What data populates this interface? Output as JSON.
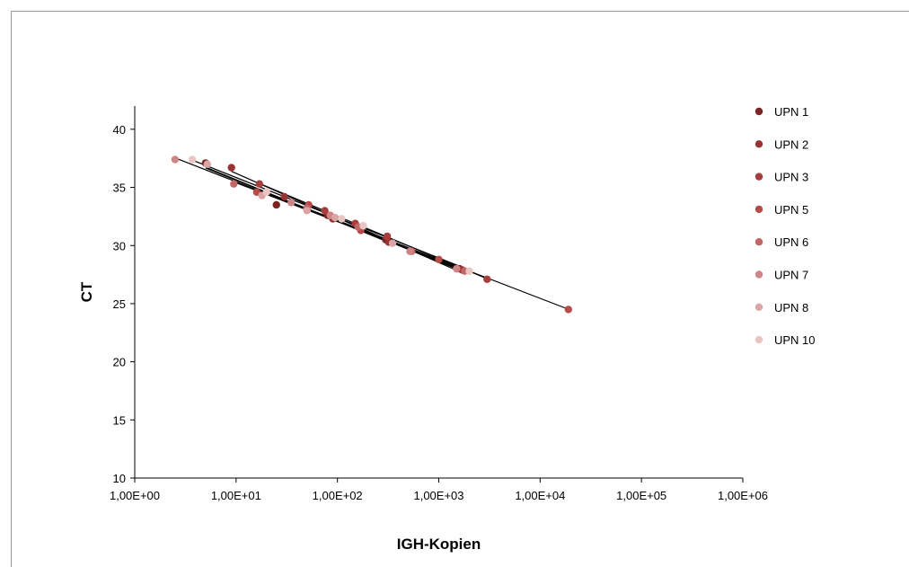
{
  "chart_data": {
    "type": "scatter",
    "title": "",
    "xlabel": "IGH-Kopien",
    "ylabel": "CT",
    "x_scale": "log",
    "xlim": [
      1,
      1000000
    ],
    "ylim": [
      10,
      42
    ],
    "x_ticks": [
      1,
      10,
      100,
      1000,
      10000,
      100000,
      1000000
    ],
    "x_tick_labels": [
      "1,00E+00",
      "1,00E+01",
      "1,00E+02",
      "1,00E+03",
      "1,00E+04",
      "1,00E+05",
      "1,00E+06"
    ],
    "y_ticks": [
      10,
      15,
      20,
      25,
      30,
      35,
      40
    ],
    "y_tick_labels": [
      "10",
      "15",
      "20",
      "25",
      "30",
      "35",
      "40"
    ],
    "grid": false,
    "legend_position": "right",
    "trendlines": true,
    "series": [
      {
        "name": "UPN 1",
        "color": "#7b2424",
        "points": [
          [
            5,
            37.1
          ],
          [
            25,
            33.5
          ],
          [
            80,
            32.6
          ],
          [
            300,
            30.5
          ],
          [
            1600,
            28.0
          ]
        ]
      },
      {
        "name": "UPN 2",
        "color": "#993333",
        "points": [
          [
            9,
            36.7
          ],
          [
            30,
            34.2
          ],
          [
            90,
            32.3
          ],
          [
            320,
            30.3
          ],
          [
            1700,
            27.9
          ]
        ]
      },
      {
        "name": "UPN 3",
        "color": "#a83d3d",
        "points": [
          [
            17,
            35.3
          ],
          [
            75,
            33.0
          ],
          [
            150,
            31.9
          ],
          [
            310,
            30.8
          ],
          [
            3000,
            27.1
          ]
        ]
      },
      {
        "name": "UPN 5",
        "color": "#b84a4a",
        "points": [
          [
            16,
            34.6
          ],
          [
            52,
            33.5
          ],
          [
            170,
            31.3
          ],
          [
            1000,
            28.8
          ],
          [
            19000,
            24.5
          ]
        ]
      },
      {
        "name": "UPN 6",
        "color": "#c46565",
        "points": [
          [
            9.5,
            35.3
          ],
          [
            50,
            33.2
          ],
          [
            160,
            31.6
          ],
          [
            540,
            29.5
          ],
          [
            1800,
            27.8
          ]
        ]
      },
      {
        "name": "UPN 7",
        "color": "#cf8585",
        "points": [
          [
            2.5,
            37.4
          ],
          [
            35,
            33.7
          ],
          [
            85,
            32.6
          ],
          [
            520,
            29.5
          ],
          [
            1500,
            28.0
          ]
        ]
      },
      {
        "name": "UPN 8",
        "color": "#dba5a5",
        "points": [
          [
            5.2,
            37.0
          ],
          [
            18,
            34.3
          ],
          [
            50,
            33.0
          ],
          [
            95,
            32.4
          ],
          [
            350,
            30.2
          ]
        ]
      },
      {
        "name": "UPN 10",
        "color": "#e8c6c2",
        "points": [
          [
            3.7,
            37.4
          ],
          [
            20,
            34.6
          ],
          [
            110,
            32.3
          ],
          [
            180,
            31.7
          ],
          [
            2000,
            27.8
          ]
        ]
      }
    ]
  }
}
